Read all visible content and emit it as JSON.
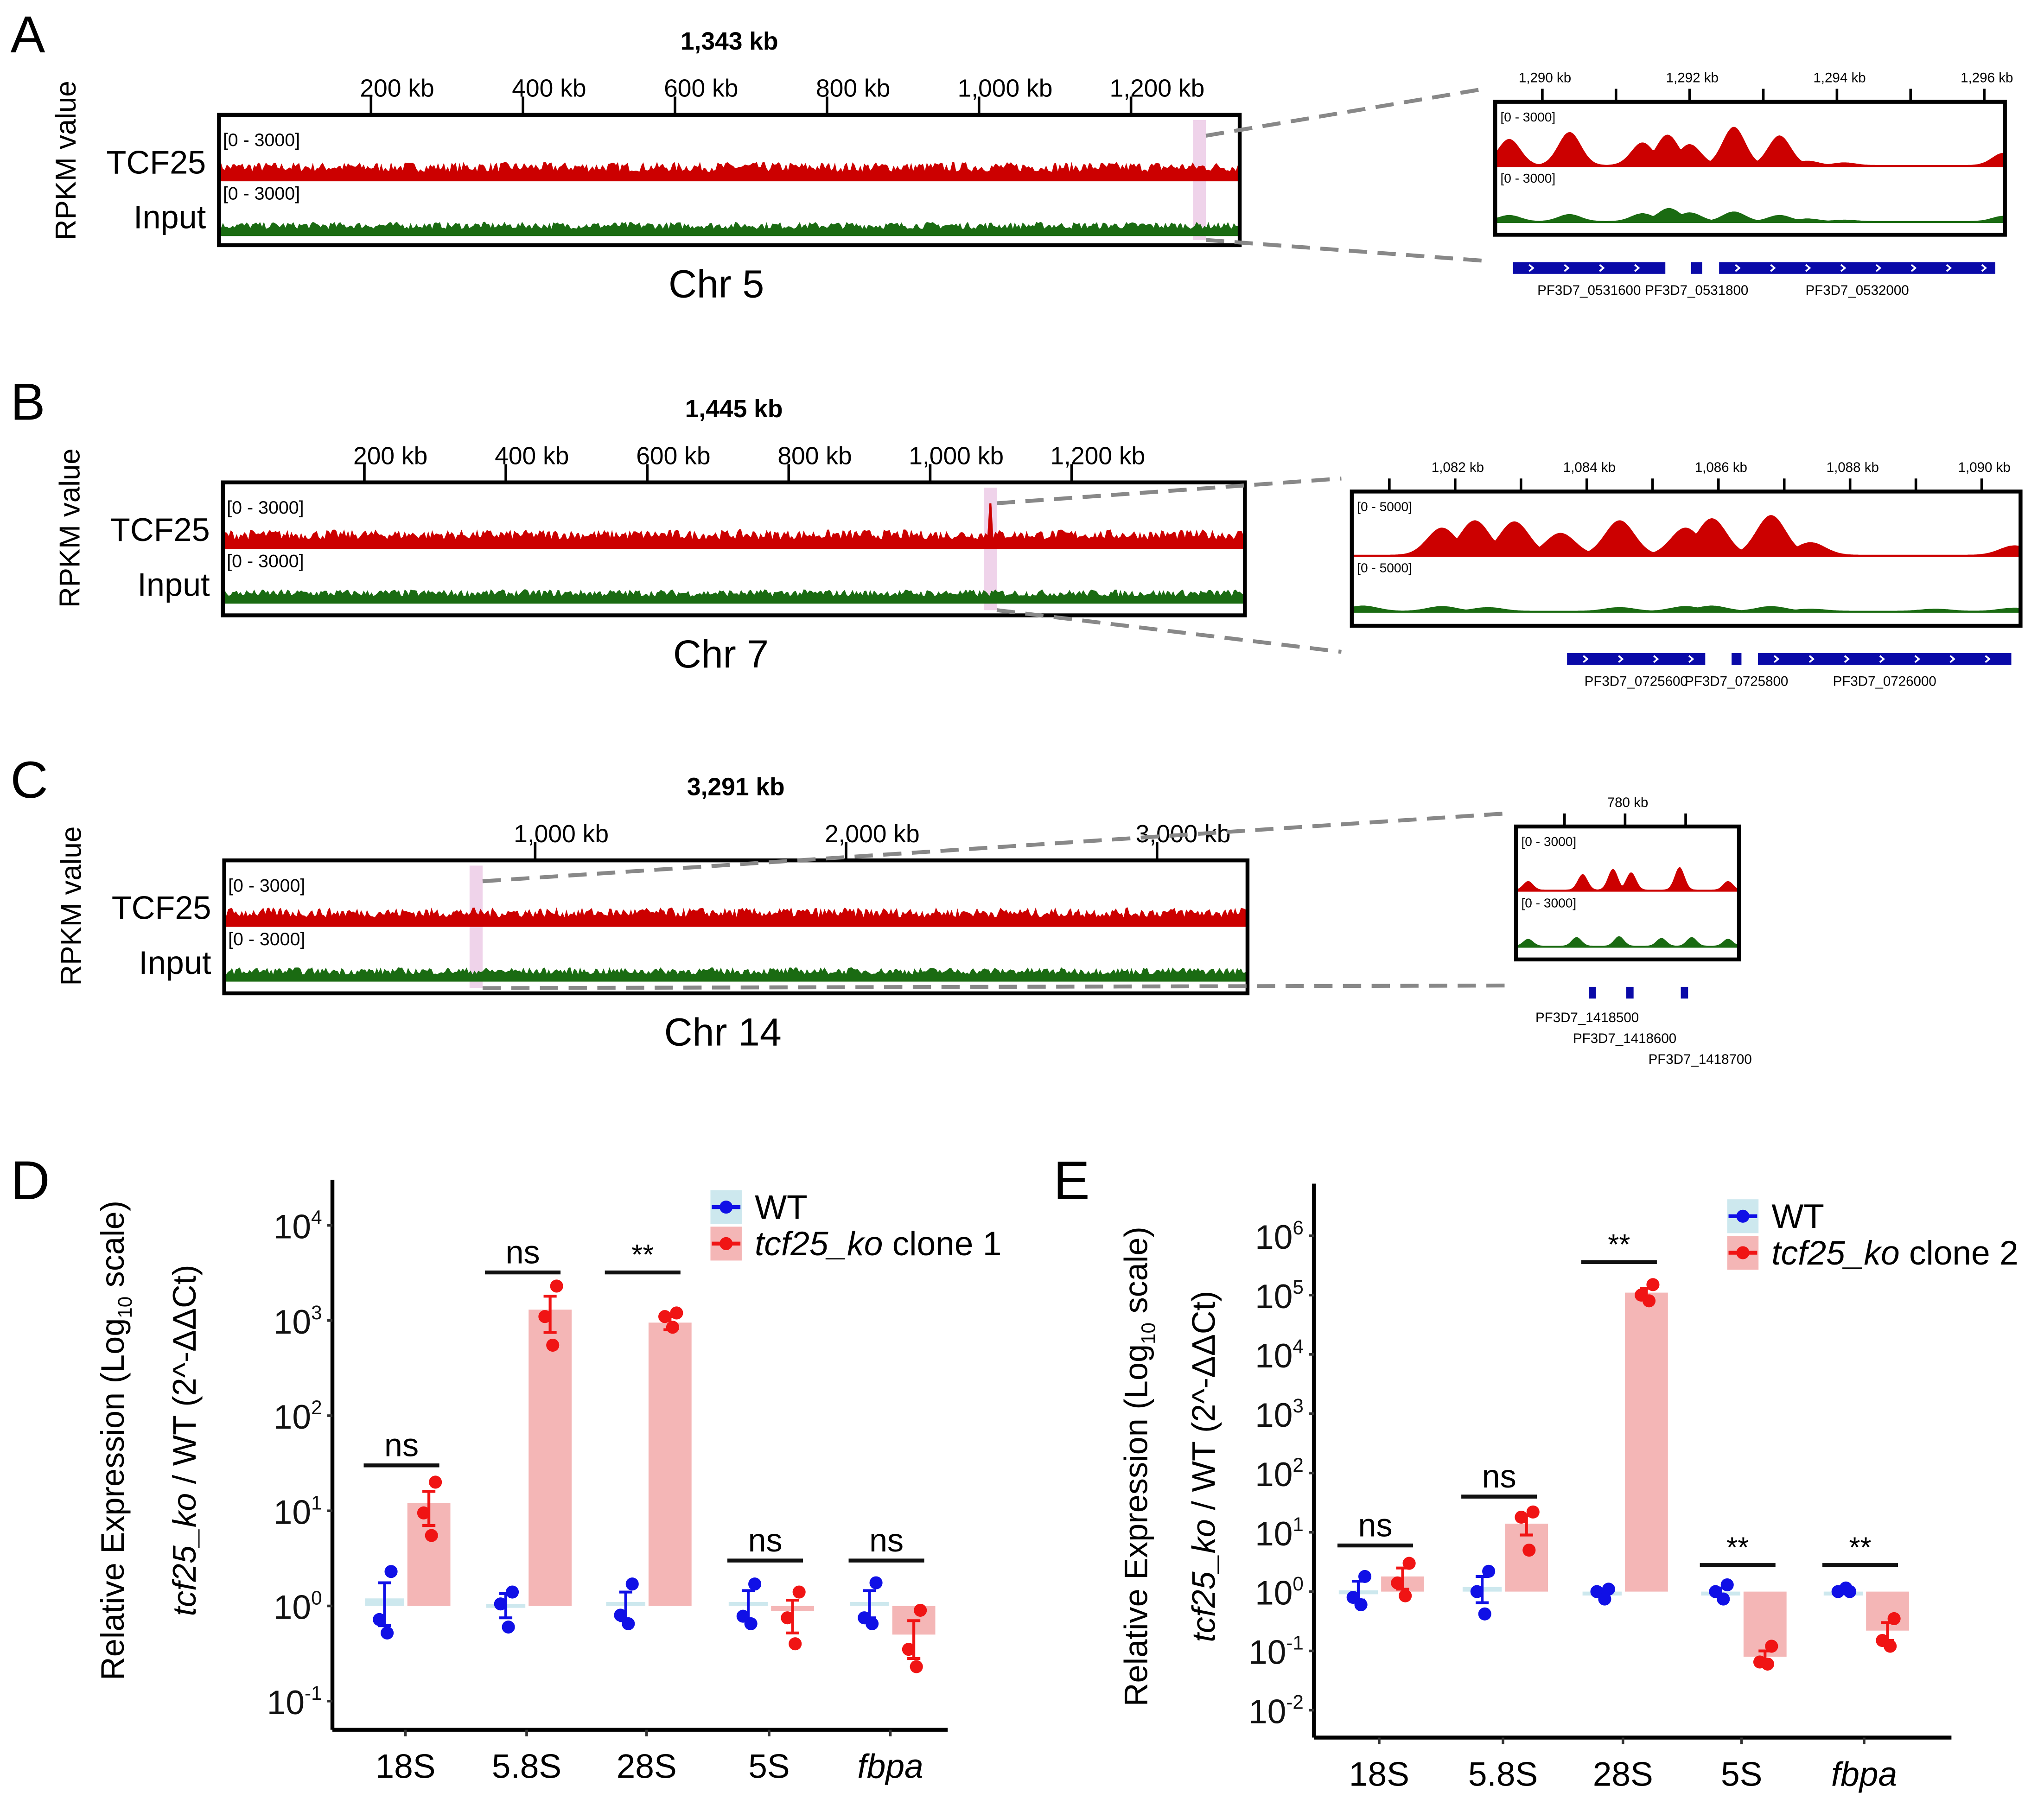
{
  "colors": {
    "tcf25": "#cc0000",
    "input": "#1a6b12",
    "highlight": "#efd3ea",
    "gene": "#0a0aa8",
    "wt": "#1010e6",
    "ko": "#f01414",
    "wt_bar": "#cde8ee",
    "ko_bar": "#f4b6b6"
  },
  "genome_panels": [
    {
      "label": "A",
      "title": "1,343 kb",
      "chr": "Chr 5",
      "ylabel": "RPKM value",
      "length_kb": 1343,
      "highlight_kb": 1290,
      "tracks": [
        {
          "name": "TCF25",
          "range": "[0 - 3000]"
        },
        {
          "name": "Input",
          "range": "[0 - 3000]"
        }
      ],
      "tick_kb": [
        200,
        400,
        600,
        800,
        1000,
        1200
      ],
      "tick_labels": [
        "200 kb",
        "400 kb",
        "600 kb",
        "800 kb",
        "1,000 kb",
        "1,200 kb"
      ],
      "zoom": {
        "range_kb": [
          1289.36,
          1296.28
        ],
        "max_value": 3000,
        "tick_kb": [
          1290,
          1291,
          1292,
          1293,
          1294,
          1295,
          1296
        ],
        "label_kb": [
          1290,
          1292,
          1294,
          1296
        ],
        "tick_labels": [
          "1,290 kb",
          "1,292 kb",
          "1,294 kb",
          "1,296 kb"
        ],
        "ranges": [
          "[0 - 3000]",
          "[0 - 3000]"
        ],
        "tcf25_peaks": [
          [
            1289.55,
            1500
          ],
          [
            1290.37,
            1900
          ],
          [
            1291.36,
            1300
          ],
          [
            1291.7,
            1750
          ],
          [
            1292.0,
            1200
          ],
          [
            1292.6,
            2200
          ],
          [
            1293.22,
            1700
          ],
          [
            1293.6,
            250
          ],
          [
            1294.1,
            150
          ],
          [
            1296.26,
            700
          ]
        ],
        "input_peaks": [
          [
            1289.55,
            350
          ],
          [
            1290.37,
            400
          ],
          [
            1291.36,
            450
          ],
          [
            1291.72,
            750
          ],
          [
            1292.0,
            500
          ],
          [
            1292.6,
            550
          ],
          [
            1293.22,
            350
          ],
          [
            1293.6,
            150
          ],
          [
            1294.1,
            80
          ],
          [
            1296.26,
            300
          ]
        ],
        "genes": [
          {
            "name": "PF3D7_0531600",
            "start_kb": 1289.6,
            "end_kb": 1291.67
          },
          {
            "name": "PF3D7_0531800",
            "start_kb": 1292.02,
            "end_kb": 1292.17
          },
          {
            "name": "PF3D7_0532000",
            "start_kb": 1292.4,
            "end_kb": 1296.15
          }
        ]
      }
    },
    {
      "label": "B",
      "title": "1,445 kb",
      "chr": "Chr 7",
      "ylabel": "RPKM value",
      "length_kb": 1445,
      "highlight_kb": 1085,
      "tracks": [
        {
          "name": "TCF25",
          "range": "[0 - 3000]"
        },
        {
          "name": "Input",
          "range": "[0 - 3000]"
        }
      ],
      "tick_kb": [
        200,
        400,
        600,
        800,
        1000,
        1200
      ],
      "tick_labels": [
        "200 kb",
        "400 kb",
        "600 kb",
        "800 kb",
        "1,000 kb",
        "1,200 kb"
      ],
      "zoom": {
        "range_kb": [
          1080.43,
          1090.59
        ],
        "max_value": 5000,
        "tick_kb": [
          1081,
          1082,
          1083,
          1084,
          1085,
          1086,
          1087,
          1088,
          1089,
          1090
        ],
        "label_kb": [
          1082,
          1084,
          1086,
          1088,
          1090
        ],
        "tick_labels": [
          "1,082 kb",
          "1,084 kb",
          "1,086 kb",
          "1,088 kb",
          "1,090 kb"
        ],
        "ranges": [
          "[0 - 5000]",
          "[0 - 5000]"
        ],
        "tcf25_peaks": [
          [
            1081.8,
            2600
          ],
          [
            1082.3,
            3300
          ],
          [
            1082.9,
            3200
          ],
          [
            1083.6,
            2100
          ],
          [
            1084.5,
            3300
          ],
          [
            1085.5,
            2600
          ],
          [
            1085.9,
            3500
          ],
          [
            1086.8,
            3800
          ],
          [
            1087.4,
            1200
          ],
          [
            1090.5,
            900
          ]
        ],
        "input_peaks": [
          [
            1080.6,
            500
          ],
          [
            1081.8,
            450
          ],
          [
            1082.5,
            350
          ],
          [
            1084.5,
            350
          ],
          [
            1085.5,
            450
          ],
          [
            1085.9,
            500
          ],
          [
            1086.8,
            450
          ],
          [
            1087.4,
            200
          ],
          [
            1089.3,
            200
          ],
          [
            1090.5,
            300
          ]
        ],
        "genes": [
          {
            "name": "PF3D7_0725600",
            "start_kb": 1083.7,
            "end_kb": 1085.8
          },
          {
            "name": "PF3D7_0725800",
            "start_kb": 1086.2,
            "end_kb": 1086.35
          },
          {
            "name": "PF3D7_0726000",
            "start_kb": 1086.6,
            "end_kb": 1090.45
          }
        ]
      }
    },
    {
      "label": "C",
      "title": "3,291 kb",
      "chr": "Chr 14",
      "ylabel": "RPKM value",
      "length_kb": 3291,
      "highlight_kb": 810,
      "tracks": [
        {
          "name": "TCF25",
          "range": "[0 - 3000]"
        },
        {
          "name": "Input",
          "range": "[0 - 3000]"
        }
      ],
      "tick_kb": [
        1000,
        2000,
        3000
      ],
      "tick_labels": [
        "1,000 kb",
        "2,000 kb",
        "3,000 kb"
      ],
      "zoom": {
        "range_kb": [
          778.6,
          782.28
        ],
        "max_value": 3000,
        "tick_kb": [
          779.4,
          780.4,
          781.4
        ],
        "label_kb": [
          780.4
        ],
        "tick_labels": [
          "780 kb"
        ],
        "ranges": [
          "[0 - 3000]",
          "[0 - 3000]"
        ],
        "tcf25_peaks": [
          [
            778.8,
            500
          ],
          [
            779.7,
            900
          ],
          [
            780.2,
            1200
          ],
          [
            780.5,
            1000
          ],
          [
            781.3,
            1300
          ],
          [
            782.1,
            500
          ]
        ],
        "input_peaks": [
          [
            778.8,
            400
          ],
          [
            779.6,
            500
          ],
          [
            780.3,
            550
          ],
          [
            781.0,
            450
          ],
          [
            781.5,
            500
          ],
          [
            782.1,
            400
          ]
        ],
        "genes": [
          {
            "name": "PF3D7_1418500",
            "start_kb": 779.8,
            "end_kb": 779.92
          },
          {
            "name": "PF3D7_1418600",
            "start_kb": 780.42,
            "end_kb": 780.54
          },
          {
            "name": "PF3D7_1418700",
            "start_kb": 781.32,
            "end_kb": 781.44
          }
        ]
      }
    }
  ],
  "chart_data": [
    {
      "type": "bar",
      "label": "D",
      "scale": "log10",
      "title": "",
      "ylabel": "Relative Expression (Log10 scale)",
      "ylabel_parts": {
        "a": "Relative Expression (Log",
        "sub": "10",
        "b": " scale)"
      },
      "ylabel2_parts": {
        "it": "tcf25_ko",
        "rest": " / WT (2^-ΔΔCt)"
      },
      "xlabel": "",
      "categories": [
        "18S",
        "5.8S",
        "28S",
        "5S",
        "fbpa"
      ],
      "italic_categories": [
        "fbpa"
      ],
      "ytick_exponents": [
        4,
        3,
        2,
        1,
        0,
        -1
      ],
      "ylim_log10": [
        -1.3,
        4.5
      ],
      "legend": [
        {
          "name": "WT"
        },
        {
          "name_it": "tcf25_ko",
          "name_rest": " clone 1"
        }
      ],
      "legend_placement": "top-right",
      "series": [
        {
          "name": "WT",
          "values": [
            1.2,
            1.05,
            1.1,
            1.1,
            1.1
          ],
          "points": [
            [
              2.3,
              0.72,
              0.52
            ],
            [
              1.4,
              1.05,
              0.6
            ],
            [
              1.7,
              0.8,
              0.65
            ],
            [
              1.7,
              0.78,
              0.65
            ],
            [
              1.75,
              0.75,
              0.65
            ]
          ],
          "error": [
            [
              0.62,
              1.75
            ],
            [
              0.75,
              1.35
            ],
            [
              0.7,
              1.4
            ],
            [
              0.7,
              1.45
            ],
            [
              0.75,
              1.45
            ]
          ]
        },
        {
          "name": "tcf25_ko clone 1",
          "values": [
            12,
            1300,
            950,
            0.88,
            0.5
          ],
          "points": [
            [
              20,
              9.5,
              5.5
            ],
            [
              2300,
              1100,
              550
            ],
            [
              1200,
              1100,
              850
            ],
            [
              1.4,
              0.75,
              0.4
            ],
            [
              0.9,
              0.35,
              0.23
            ]
          ],
          "error": [
            [
              7,
              16
            ],
            [
              750,
              1800
            ],
            [
              800,
              1100
            ],
            [
              0.52,
              1.15
            ],
            [
              0.28,
              0.7
            ]
          ]
        }
      ],
      "significance": [
        {
          "text": "ns",
          "y": 30
        },
        {
          "text": "ns",
          "y": 3200
        },
        {
          "text": "**",
          "y": 3200
        },
        {
          "text": "ns",
          "y": 3
        },
        {
          "text": "ns",
          "y": 3
        }
      ]
    },
    {
      "type": "bar",
      "label": "E",
      "scale": "log10",
      "title": "",
      "ylabel": "Relative Expression (Log10 scale)",
      "ylabel_parts": {
        "a": "Relative Expression (Log",
        "sub": "10",
        "b": " scale)"
      },
      "ylabel2_parts": {
        "it": "tcf25_ko",
        "rest": " / WT (2^-ΔΔCt)"
      },
      "xlabel": "",
      "categories": [
        "18S",
        "5.8S",
        "28S",
        "5S",
        "fbpa"
      ],
      "italic_categories": [
        "fbpa"
      ],
      "ytick_exponents": [
        6,
        5,
        4,
        3,
        2,
        1,
        0,
        -1,
        -2
      ],
      "ylim_log10": [
        -2.4,
        7
      ],
      "legend": [
        {
          "name": "WT"
        },
        {
          "name_it": "tcf25_ko",
          "name_rest": " clone 2"
        }
      ],
      "legend_placement": "top-right",
      "series": [
        {
          "name": "WT",
          "values": [
            1.05,
            1.2,
            1.0,
            1.0,
            1.0
          ],
          "points": [
            [
              1.8,
              0.8,
              0.6
            ],
            [
              2.2,
              1.0,
              0.42
            ],
            [
              1.1,
              1.0,
              0.75
            ],
            [
              1.3,
              1.0,
              0.75
            ],
            [
              1.0,
              1.0,
              1.15
            ]
          ],
          "error": [
            [
              0.72,
              1.5
            ],
            [
              0.65,
              1.8
            ],
            [
              0.85,
              1.05
            ],
            [
              0.85,
              1.15
            ],
            [
              0.95,
              1.05
            ]
          ]
        },
        {
          "name": "tcf25_ko clone 2",
          "values": [
            1.8,
            14,
            110000,
            0.08,
            0.22
          ],
          "points": [
            [
              3.0,
              1.4,
              0.85
            ],
            [
              22,
              18,
              5
            ],
            [
              150000,
              100000,
              80000
            ],
            [
              0.12,
              0.065,
              0.06
            ],
            [
              0.35,
              0.15,
              0.12
            ]
          ],
          "error": [
            [
              1.1,
              2.5
            ],
            [
              9,
              19
            ],
            [
              85000,
              130000
            ],
            [
              0.065,
              0.1
            ],
            [
              0.15,
              0.3
            ]
          ]
        }
      ],
      "significance": [
        {
          "text": "ns",
          "y": 6
        },
        {
          "text": "ns",
          "y": 40
        },
        {
          "text": "**",
          "y": 360000
        },
        {
          "text": "**",
          "y": 2.8
        },
        {
          "text": "**",
          "y": 2.8
        }
      ]
    }
  ]
}
